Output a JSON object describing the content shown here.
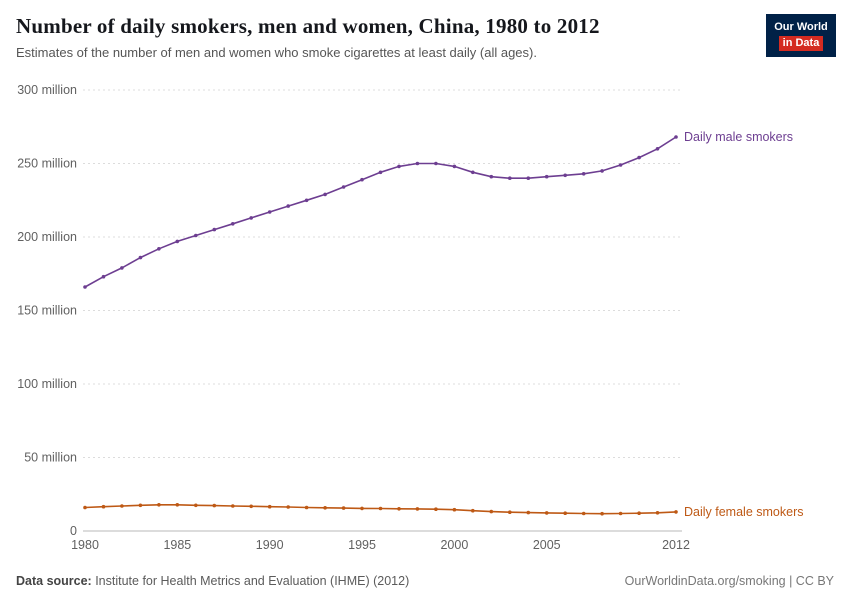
{
  "header": {
    "title": "Number of daily smokers, men and women, China, 1980 to 2012",
    "subtitle": "Estimates of the number of men and women who smoke cigarettes at least daily (all ages).",
    "logo": {
      "line1": "Our World",
      "line2": "in Data",
      "bg": "#002147",
      "accent": "#d42b21"
    }
  },
  "chart_data": {
    "type": "line",
    "title": "Number of daily smokers, men and women, China, 1980 to 2012",
    "xlabel": "",
    "ylabel": "",
    "unit": "million",
    "grid": "dashed-horizontal",
    "legend_position": "end-of-line-labels",
    "xlim": [
      1980,
      2012
    ],
    "ylim": [
      0,
      300
    ],
    "x_ticks": [
      1980,
      1985,
      1990,
      1995,
      2000,
      2005,
      2012
    ],
    "y_ticks": [
      0,
      50,
      100,
      150,
      200,
      250,
      300
    ],
    "y_tick_labels": [
      "0",
      "50 million",
      "100 million",
      "150 million",
      "200 million",
      "250 million",
      "300 million"
    ],
    "x": [
      1980,
      1981,
      1982,
      1983,
      1984,
      1985,
      1986,
      1987,
      1988,
      1989,
      1990,
      1991,
      1992,
      1993,
      1994,
      1995,
      1996,
      1997,
      1998,
      1999,
      2000,
      2001,
      2002,
      2003,
      2004,
      2005,
      2006,
      2007,
      2008,
      2009,
      2010,
      2011,
      2012
    ],
    "series": [
      {
        "name": "Daily male smokers",
        "color": "#6d3e91",
        "values": [
          166,
          173,
          179,
          186,
          192,
          197,
          201,
          205,
          209,
          213,
          217,
          221,
          225,
          229,
          234,
          239,
          244,
          248,
          250,
          250,
          248,
          244,
          241,
          240,
          240,
          241,
          242,
          243,
          245,
          249,
          254,
          260,
          268
        ]
      },
      {
        "name": "Daily female smokers",
        "color": "#be5915",
        "values": [
          16,
          16.5,
          17,
          17.5,
          17.8,
          17.8,
          17.5,
          17.3,
          17,
          16.8,
          16.5,
          16.3,
          16,
          15.8,
          15.6,
          15.4,
          15.3,
          15.1,
          15,
          14.8,
          14.5,
          13.8,
          13.2,
          12.8,
          12.5,
          12.3,
          12.1,
          11.9,
          11.8,
          11.9,
          12.1,
          12.4,
          13
        ]
      }
    ]
  },
  "footer": {
    "source_label": "Data source:",
    "source_text": " Institute for Health Metrics and Evaluation (IHME) (2012)",
    "link_text": "OurWorldinData.org/smoking | CC BY"
  }
}
